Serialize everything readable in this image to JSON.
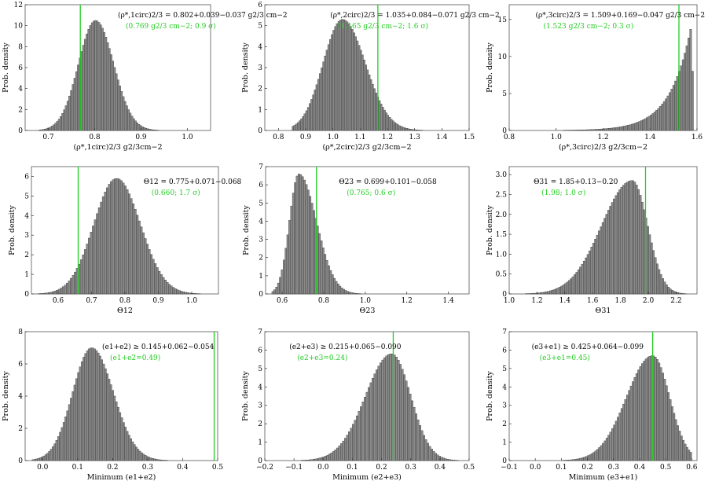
{
  "chart_data": [
    {
      "type": "bar",
      "ylabel": "Prob. density",
      "xlabel": "(ρ*,1circ)2/3 g2/3cm−2",
      "xlim": [
        0.65,
        1.05
      ],
      "ylim": [
        0,
        12
      ],
      "xticks": [
        "0.7",
        "0.8",
        "0.9",
        "1.0"
      ],
      "xtick_values": [
        0.7,
        0.8,
        0.9,
        1.0
      ],
      "yticks": [
        "0",
        "2",
        "4",
        "6",
        "8",
        "10",
        "12"
      ],
      "ytick_values": [
        0,
        2,
        4,
        6,
        8,
        10,
        12
      ],
      "dist": {
        "kind": "gauss",
        "mu": 0.802,
        "sl": 0.037,
        "sr": 0.039,
        "peak": 10.5,
        "lo": 0.68,
        "hi": 0.98,
        "n": 80
      },
      "marker_x": 0.769,
      "annotation": "(ρ*,1circ)2/3 = 0.802+0.039−0.037 g2/3 cm−2",
      "annotation_green": "(0.769 g2/3 cm−2; 0.9 σ)"
    },
    {
      "type": "bar",
      "ylabel": "Prob. density",
      "xlabel": "(ρ*,2circ)2/3 g2/3cm−2",
      "xlim": [
        0.75,
        1.5
      ],
      "ylim": [
        0,
        6
      ],
      "xticks": [
        "0.8",
        "0.9",
        "1.0",
        "1.1",
        "1.2",
        "1.3",
        "1.4",
        "1.5"
      ],
      "xtick_values": [
        0.8,
        0.9,
        1.0,
        1.1,
        1.2,
        1.3,
        1.4,
        1.5
      ],
      "yticks": [
        "0",
        "1",
        "2",
        "3",
        "4",
        "5",
        "6"
      ],
      "ytick_values": [
        0,
        1,
        2,
        3,
        4,
        5,
        6
      ],
      "dist": {
        "kind": "gauss",
        "mu": 1.035,
        "sl": 0.071,
        "sr": 0.084,
        "peak": 5.3,
        "lo": 0.85,
        "hi": 1.38,
        "n": 85
      },
      "marker_x": 1.165,
      "annotation": "(ρ*,2circ)2/3 = 1.035+0.084−0.071 g2/3 cm−2",
      "annotation_green": "(1.165 g2/3 cm−2; 1.6 σ)"
    },
    {
      "type": "bar",
      "ylabel": "Prob. density",
      "xlabel": "(ρ*,3circ)2/3 g2/3cm−2",
      "xlim": [
        0.8,
        1.6
      ],
      "ylim": [
        0,
        17
      ],
      "xticks": [
        "0.8",
        "1.0",
        "1.2",
        "1.4",
        "1.6"
      ],
      "xtick_values": [
        0.8,
        1.0,
        1.2,
        1.4,
        1.6
      ],
      "yticks": [
        "0",
        "5",
        "10",
        "15"
      ],
      "ytick_values": [
        0,
        5,
        10,
        15
      ],
      "dist": {
        "kind": "exp",
        "mu": 1.575,
        "scale": 0.09,
        "peak": 14,
        "lo": 0.82,
        "hi": 1.585,
        "n": 95
      },
      "marker_x": 1.523,
      "annotation": "(ρ*,3circ)2/3 = 1.509+0.169−0.047 g2/3 cm−2",
      "annotation_green": "(1.523 g2/3 cm−2; 0.3 σ)"
    },
    {
      "type": "bar",
      "ylabel": "Prob. density",
      "xlabel": "Θ12",
      "xlim": [
        0.52,
        1.08
      ],
      "ylim": [
        0,
        6.5
      ],
      "xticks": [
        "0.6",
        "0.7",
        "0.8",
        "0.9",
        "1.0"
      ],
      "xtick_values": [
        0.6,
        0.7,
        0.8,
        0.9,
        1.0
      ],
      "yticks": [
        "0",
        "1",
        "2",
        "3",
        "4",
        "5",
        "6"
      ],
      "ytick_values": [
        0,
        1,
        2,
        3,
        4,
        5,
        6
      ],
      "dist": {
        "kind": "gauss",
        "mu": 0.775,
        "sl": 0.068,
        "sr": 0.071,
        "peak": 5.9,
        "lo": 0.54,
        "hi": 1.05,
        "n": 85
      },
      "marker_x": 0.66,
      "annotation": "Θ12 = 0.775+0.071−0.068",
      "annotation_green": "(0.660; 1.7 σ)"
    },
    {
      "type": "bar",
      "ylabel": "Prob. density",
      "xlabel": "Θ23",
      "xlim": [
        0.52,
        1.5
      ],
      "ylim": [
        0,
        7
      ],
      "xticks": [
        "0.6",
        "0.8",
        "1.0",
        "1.2",
        "1.4"
      ],
      "xtick_values": [
        0.6,
        0.8,
        1.0,
        1.2,
        1.4
      ],
      "yticks": [
        "0",
        "1",
        "2",
        "3",
        "4",
        "5",
        "6",
        "7"
      ],
      "ytick_values": [
        0,
        1,
        2,
        3,
        4,
        5,
        6,
        7
      ],
      "dist": {
        "kind": "gauss",
        "mu": 0.68,
        "sl": 0.045,
        "sr": 0.085,
        "peak": 6.6,
        "lo": 0.55,
        "hi": 1.45,
        "n": 100
      },
      "marker_x": 0.765,
      "annotation": "Θ23 = 0.699+0.101−0.058",
      "annotation_green": "(0.765; 0.6 σ)"
    },
    {
      "type": "bar",
      "ylabel": "Prob. density",
      "xlabel": "Θ31",
      "xlim": [
        1.0,
        2.35
      ],
      "ylim": [
        0,
        3.2
      ],
      "xticks": [
        "1.0",
        "1.2",
        "1.4",
        "1.6",
        "1.8",
        "2.0",
        "2.2"
      ],
      "xtick_values": [
        1.0,
        1.2,
        1.4,
        1.6,
        1.8,
        2.0,
        2.2
      ],
      "yticks": [
        "0",
        "0.5",
        "1.0",
        "1.5",
        "2.0",
        "2.5",
        "3.0"
      ],
      "ytick_values": [
        0,
        0.5,
        1.0,
        1.5,
        2.0,
        2.5,
        3.0
      ],
      "dist": {
        "kind": "gauss",
        "mu": 1.885,
        "sl": 0.22,
        "sr": 0.11,
        "peak": 2.85,
        "lo": 1.02,
        "hi": 2.3,
        "n": 95
      },
      "marker_x": 1.98,
      "annotation": "Θ31 = 1.85+0.13−0.20",
      "annotation_green": "(1.98; 1.0 σ)"
    },
    {
      "type": "bar",
      "ylabel": "Prob. density",
      "xlabel": "Minimum (e1+e2)",
      "xlim": [
        -0.05,
        0.5
      ],
      "ylim": [
        0,
        8
      ],
      "xticks": [
        "0.0",
        "0.1",
        "0.2",
        "0.3",
        "0.4",
        "0.5"
      ],
      "xtick_values": [
        0.0,
        0.1,
        0.2,
        0.3,
        0.4,
        0.5
      ],
      "yticks": [
        "0",
        "2",
        "4",
        "6",
        "8"
      ],
      "ytick_values": [
        0,
        2,
        4,
        6,
        8
      ],
      "dist": {
        "kind": "gauss",
        "mu": 0.14,
        "sl": 0.054,
        "sr": 0.062,
        "peak": 7.0,
        "lo": -0.03,
        "hi": 0.41,
        "n": 85
      },
      "marker_x": 0.49,
      "annotation": "(e1+e2) ≥ 0.145+0.062−0.054",
      "annotation_green": "(e1+e2=0.49)"
    },
    {
      "type": "bar",
      "ylabel": "Prob. density",
      "xlabel": "Minimum (e2+e3)",
      "xlim": [
        -0.2,
        0.5
      ],
      "ylim": [
        0,
        7
      ],
      "xticks": [
        "−0.2",
        "−0.1",
        "0.0",
        "0.1",
        "0.2",
        "0.3",
        "0.4",
        "0.5"
      ],
      "xtick_values": [
        -0.2,
        -0.1,
        0.0,
        0.1,
        0.2,
        0.3,
        0.4,
        0.5
      ],
      "yticks": [
        "0",
        "1",
        "2",
        "3",
        "4",
        "5",
        "6",
        "7"
      ],
      "ytick_values": [
        0,
        1,
        2,
        3,
        4,
        5,
        6,
        7
      ],
      "dist": {
        "kind": "gauss",
        "mu": 0.235,
        "sl": 0.09,
        "sr": 0.065,
        "peak": 5.8,
        "lo": -0.17,
        "hi": 0.47,
        "n": 95
      },
      "marker_x": 0.24,
      "annotation": "(e2+e3) ≥ 0.215+0.065−0.090",
      "annotation_green": "(e2+e3=0.24)"
    },
    {
      "type": "bar",
      "ylabel": "Prob. density",
      "xlabel": "Minimum (e3+e1)",
      "xlim": [
        -0.1,
        0.62
      ],
      "ylim": [
        0,
        7
      ],
      "xticks": [
        "−0.1",
        "0.0",
        "0.1",
        "0.2",
        "0.3",
        "0.4",
        "0.5",
        "0.6"
      ],
      "xtick_values": [
        -0.1,
        0.0,
        0.1,
        0.2,
        0.3,
        0.4,
        0.5,
        0.6
      ],
      "yticks": [
        "0",
        "1",
        "2",
        "3",
        "4",
        "5",
        "6",
        "7"
      ],
      "ytick_values": [
        0,
        1,
        2,
        3,
        4,
        5,
        6,
        7
      ],
      "dist": {
        "kind": "gauss",
        "mu": 0.45,
        "sl": 0.1,
        "sr": 0.065,
        "peak": 5.7,
        "lo": -0.08,
        "hi": 0.6,
        "n": 95
      },
      "marker_x": 0.45,
      "annotation": "(e3+e1) ≥ 0.425+0.064−0.099",
      "annotation_green": "(e3+e1=0.45)"
    }
  ]
}
